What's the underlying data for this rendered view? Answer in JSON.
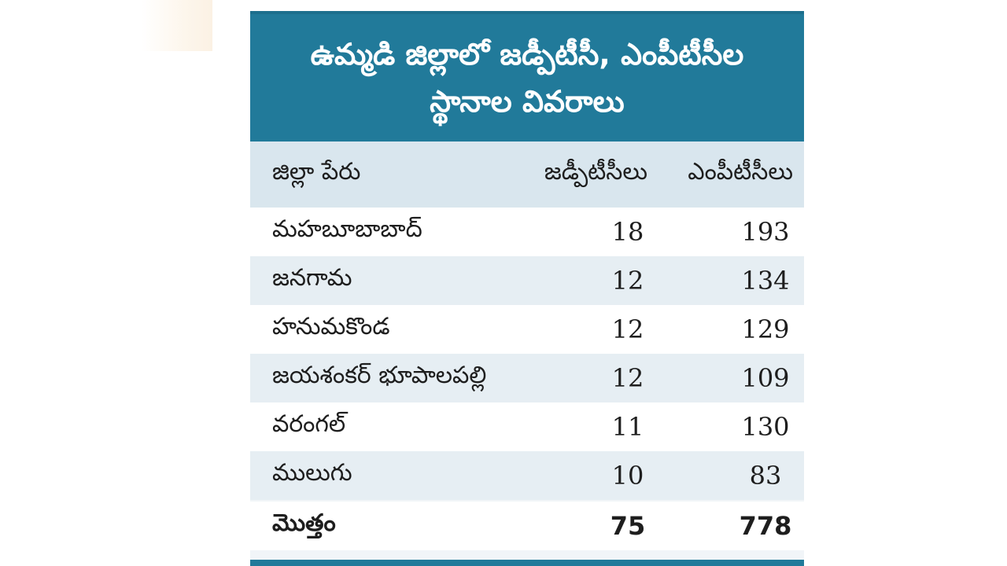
{
  "title": {
    "line1": "ఉమ్మడి జిల్లాలో జడ్పీటీసీ, ఎంపీటీసీల",
    "line2": "స్థానాల వివరాలు"
  },
  "table": {
    "headers": {
      "district": "జిల్లా పేరు",
      "zptc": "జడ్పీటీసీలు",
      "mptc": "ఎంపీటీసీలు"
    },
    "rows": [
      {
        "district": "మహబూబాబాద్",
        "zptc": "18",
        "mptc": "193"
      },
      {
        "district": "జనగామ",
        "zptc": "12",
        "mptc": "134"
      },
      {
        "district": "హనుమకొండ",
        "zptc": "12",
        "mptc": "129"
      },
      {
        "district": "జయశంకర్ భూపాలపల్లి",
        "zptc": "12",
        "mptc": "109"
      },
      {
        "district": "వరంగల్",
        "zptc": "11",
        "mptc": "130"
      },
      {
        "district": "ములుగు",
        "zptc": "10",
        "mptc": "83"
      }
    ],
    "total": {
      "label": "మొత్తం",
      "zptc": "75",
      "mptc": "778"
    }
  },
  "colors": {
    "title_band": "#217a9a",
    "header_row": "#d9e6ee",
    "row_alt": "#e6eef3",
    "text": "#1e1e1e"
  }
}
